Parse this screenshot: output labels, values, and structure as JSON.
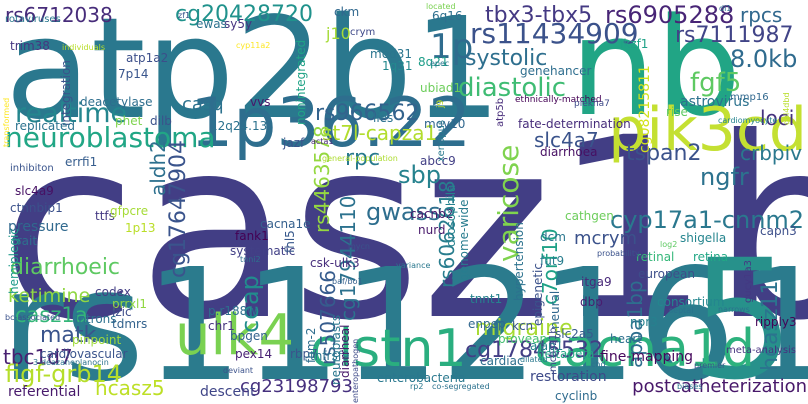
{
  "words": [
    {
      "text": "casz1b",
      "color": "#423e85"
    },
    {
      "text": "rs1112161",
      "color": "#2b7b8d"
    },
    {
      "text": "5",
      "color": "#27918b"
    },
    {
      "text": "atp2b1",
      "color": "#2a788e"
    },
    {
      "text": "nb",
      "color": "#21a585"
    },
    {
      "text": "1p36.22",
      "color": "#2e6e8e"
    },
    {
      "text": "pik3cd",
      "color": "#c4e032"
    },
    {
      "text": "clstn1",
      "color": "#2aae7f"
    },
    {
      "text": "cacna1d",
      "color": "#2db27d"
    },
    {
      "text": "ulk4",
      "color": "#7ad151"
    },
    {
      "text": "neuroblastoma",
      "color": "#21a685"
    },
    {
      "text": "realtime",
      "color": "#24868e"
    },
    {
      "text": "rs11434909",
      "color": "#3b528b"
    },
    {
      "text": "tbx3-tbx5",
      "color": "#443983"
    },
    {
      "text": "rs6905288",
      "color": "#482576"
    },
    {
      "text": "rs6712038",
      "color": "#472c7a"
    },
    {
      "text": "cg20428720",
      "color": "#20928c"
    },
    {
      "text": "1p",
      "color": "#2f6c8e"
    },
    {
      "text": "systolic",
      "color": "#2e6f8e"
    },
    {
      "text": "diastolic",
      "color": "#3fbc73"
    },
    {
      "text": "8.0kb",
      "color": "#2f6b8e"
    },
    {
      "text": "rs7111987",
      "color": "#414487"
    },
    {
      "text": "fgf5",
      "color": "#5ec962"
    },
    {
      "text": "rpcs",
      "color": "#31688e"
    },
    {
      "text": "loci",
      "color": "#46327e"
    },
    {
      "text": "rs966562",
      "color": "#33638d"
    },
    {
      "text": "st7l-capza1",
      "color": "#b2dd2d"
    },
    {
      "text": "tspan2",
      "color": "#3b528b"
    },
    {
      "text": "ngfr",
      "color": "#2c728e"
    },
    {
      "text": "crbpiv",
      "color": "#2a788e"
    },
    {
      "text": "cyp17a1-cnnm2",
      "color": "#2a788e"
    },
    {
      "text": "varicose",
      "color": "#7fd34e"
    },
    {
      "text": "slc4a7",
      "color": "#3a538b"
    },
    {
      "text": "rs4463578",
      "color": "#95d840"
    },
    {
      "text": "sbp",
      "color": "#26828e"
    },
    {
      "text": "gwass",
      "color": "#2e6e8e"
    },
    {
      "text": "rpc",
      "color": "#297a8e"
    },
    {
      "text": "aldh2",
      "color": "#2d708e"
    },
    {
      "text": "casq",
      "color": "#2c728e"
    },
    {
      "text": "cg17647904",
      "color": "#3a548c"
    },
    {
      "text": "diarrhoeic",
      "color": "#5ec962"
    },
    {
      "text": "ketimine",
      "color": "#90d743"
    },
    {
      "text": "casz1a",
      "color": "#34b679"
    },
    {
      "text": "matk",
      "color": "#3a548c"
    },
    {
      "text": "tbc1d7",
      "color": "#482071"
    },
    {
      "text": "figf-grb14",
      "color": "#b5de2b"
    },
    {
      "text": "hcasz5",
      "color": "#bddf26"
    },
    {
      "text": "ceap",
      "color": "#228c8d"
    },
    {
      "text": "migraine",
      "color": "#a8db34"
    },
    {
      "text": "cg17845532",
      "color": "#433e85"
    },
    {
      "text": "mcrym",
      "color": "#3b528b"
    },
    {
      "text": "apoa1bp",
      "color": "#2e6e8e"
    },
    {
      "text": "hcasz11",
      "color": "#2b748e"
    },
    {
      "text": "rs507666",
      "color": "#365c8d"
    },
    {
      "text": "cg17944110",
      "color": "#2c728e"
    },
    {
      "text": "rs6062618",
      "color": "#287d8e"
    },
    {
      "text": "c7orf10",
      "color": "#1fa287"
    },
    {
      "text": "cg23198793",
      "color": "#46307e"
    },
    {
      "text": "postcatheterization",
      "color": "#48186a"
    },
    {
      "text": "restoration",
      "color": "#3e4a89"
    },
    {
      "text": "enterobacteria",
      "color": "#2a788e"
    },
    {
      "text": "referential",
      "color": "#481a6c"
    },
    {
      "text": "descent",
      "color": "#404688"
    },
    {
      "text": "j10",
      "color": "#a5db36"
    },
    {
      "text": "ckm",
      "color": "#31688e"
    },
    {
      "text": "crym",
      "color": "#3e4989"
    },
    {
      "text": "med31",
      "color": "#2b758e"
    },
    {
      "text": "1q31",
      "color": "#23898e"
    },
    {
      "text": "8q21",
      "color": "#1f9e89"
    },
    {
      "text": "6q16",
      "color": "#2e6f8e"
    },
    {
      "text": "genehancer",
      "color": "#2e6e8e"
    },
    {
      "text": "astrovirus",
      "color": "#2c728e"
    },
    {
      "text": "cg08215811",
      "color": "#d2e21b"
    },
    {
      "text": "ikzf1",
      "color": "#1fa287"
    },
    {
      "text": "rise",
      "color": "#5ec962"
    },
    {
      "text": "ubiad1",
      "color": "#6ccd5a"
    },
    {
      "text": "mov10",
      "color": "#31678e"
    },
    {
      "text": "lies",
      "color": "#2c728e"
    },
    {
      "text": "fate-determination",
      "color": "#472d7b"
    },
    {
      "text": "diarrhoea",
      "color": "#471063"
    },
    {
      "text": "retinal",
      "color": "#35b779"
    },
    {
      "text": "retina",
      "color": "#22a785"
    },
    {
      "text": "fut9",
      "color": "#287d8e"
    },
    {
      "text": "dcm",
      "color": "#2a768e"
    },
    {
      "text": "itga9",
      "color": "#482979"
    },
    {
      "text": "dbp",
      "color": "#481d6f"
    },
    {
      "text": "capn3",
      "color": "#3c4f8a"
    },
    {
      "text": "consortium",
      "color": "#24868e"
    },
    {
      "text": "npr3",
      "color": "#26818e"
    },
    {
      "text": "european",
      "color": "#3d4e8a"
    },
    {
      "text": "tnnt1",
      "color": "#26828e"
    },
    {
      "text": "enpep",
      "color": "#31678e"
    },
    {
      "text": "kcn",
      "color": "#39558c"
    },
    {
      "text": "provean",
      "color": "#44bf70"
    },
    {
      "text": "heart",
      "color": "#2e6f8e"
    },
    {
      "text": "fine-mapping",
      "color": "#46085c"
    },
    {
      "text": "deltabeta",
      "color": "#22a884"
    },
    {
      "text": "cyclinb",
      "color": "#2f6b8e"
    },
    {
      "text": "ripply3",
      "color": "#440256"
    },
    {
      "text": "cardiovascular",
      "color": "#3a548c"
    },
    {
      "text": "introns",
      "color": "#2c718e"
    },
    {
      "text": "tdmrs",
      "color": "#33628d"
    },
    {
      "text": "pinpoint",
      "color": "#9fda3a"
    },
    {
      "text": "codex",
      "color": "#433d84"
    },
    {
      "text": "prrxl1",
      "color": "#91d742"
    },
    {
      "text": "lzic",
      "color": "#3d4d8a"
    },
    {
      "text": "chr1",
      "color": "#46337f"
    },
    {
      "text": "bpgen",
      "color": "#33628d"
    },
    {
      "text": "pex14",
      "color": "#482173"
    },
    {
      "text": "rbp7",
      "color": "#3a548c"
    },
    {
      "text": "tnfrsf9",
      "color": "#2c738e"
    },
    {
      "text": "ajap1",
      "color": "#25848e"
    },
    {
      "text": "slc2a5",
      "color": "#375b8d"
    },
    {
      "text": "cardiac",
      "color": "#2e6f8e"
    },
    {
      "text": "csk-ulk3",
      "color": "#472e7c"
    },
    {
      "text": "cathgen",
      "color": "#6ccd5a"
    },
    {
      "text": "fank1",
      "color": "#440154"
    },
    {
      "text": "systematic",
      "color": "#424086"
    },
    {
      "text": "cacna1e",
      "color": "#35608d"
    },
    {
      "text": "cacnb2",
      "color": "#481769"
    },
    {
      "text": "nurd",
      "color": "#481a6c"
    },
    {
      "text": "abcc9",
      "color": "#423f85"
    },
    {
      "text": "shigella",
      "color": "#25858e"
    },
    {
      "text": "errfi1",
      "color": "#365d8d"
    },
    {
      "text": "slc4a9",
      "color": "#471164"
    },
    {
      "text": "ctnnbip1",
      "color": "#3b518b"
    },
    {
      "text": "pressure",
      "color": "#30698e"
    },
    {
      "text": "trait",
      "color": "#2e6f8e"
    },
    {
      "text": "hemiplegic",
      "color": "#1f9a8a"
    },
    {
      "text": "ttfs",
      "color": "#443983"
    },
    {
      "text": "gfpcre",
      "color": "#a5db36"
    },
    {
      "text": "1p13",
      "color": "#bade28"
    },
    {
      "text": "trim38",
      "color": "#453781"
    },
    {
      "text": "deacetylase",
      "color": "#2e6e8e"
    },
    {
      "text": "integration",
      "color": "#3a538b"
    },
    {
      "text": "nonintegrated",
      "color": "#20a386"
    },
    {
      "text": "atp1a2",
      "color": "#3c4f8a"
    },
    {
      "text": "7p14",
      "color": "#39558c"
    },
    {
      "text": "replicated",
      "color": "#2c728e"
    },
    {
      "text": "phet",
      "color": "#7fd34e"
    },
    {
      "text": "dilb",
      "color": "#3b528b"
    },
    {
      "text": "12q24.13",
      "color": "#2c728e"
    },
    {
      "text": "vvs",
      "color": "#48186a"
    },
    {
      "text": "sy5y",
      "color": "#46337f"
    },
    {
      "text": "ewas",
      "color": "#2c728e"
    },
    {
      "text": "rotaviruses",
      "color": "#2a788e"
    },
    {
      "text": "individuals",
      "color": "#b8de29"
    },
    {
      "text": "zf1",
      "color": "#3a548c"
    },
    {
      "text": "cyp11a2",
      "color": "#fde725"
    },
    {
      "text": "located",
      "color": "#7ad151"
    },
    {
      "text": "epec",
      "color": "#2a788e"
    },
    {
      "text": "atp5b",
      "color": "#472c7a"
    },
    {
      "text": "ethnically-matched",
      "color": "#440154"
    },
    {
      "text": "plekha7",
      "color": "#3e4a89"
    },
    {
      "text": "mmp16",
      "color": "#31688e"
    },
    {
      "text": "cardiomyocyte",
      "color": "#25848e"
    },
    {
      "text": "acta1",
      "color": "#482878"
    },
    {
      "text": "xenopus",
      "color": "#297a8e"
    },
    {
      "text": "j9",
      "color": "#c2df23"
    },
    {
      "text": "drosophila",
      "color": "#26828e"
    },
    {
      "text": "genome-wide",
      "color": "#287c8e"
    },
    {
      "text": "general-population",
      "color": "#addc30"
    },
    {
      "text": "jazf",
      "color": "#3a548c"
    },
    {
      "text": "mycn",
      "color": "#3b528b"
    },
    {
      "text": "neuroblasts",
      "color": "#2a788e"
    },
    {
      "text": "fhl5",
      "color": "#38598c"
    },
    {
      "text": "fhm-2",
      "color": "#2e6e8e"
    },
    {
      "text": "diarrheal",
      "color": "#481769"
    },
    {
      "text": "hypertension",
      "color": "#2c728e"
    },
    {
      "text": "epigenetic",
      "color": "#3b528b"
    },
    {
      "text": "neural",
      "color": "#31688e"
    },
    {
      "text": "mcasz1b",
      "color": "#3e4a89"
    },
    {
      "text": "chd",
      "color": "#2d708e"
    },
    {
      "text": "meta-analysis",
      "color": "#46337f"
    },
    {
      "text": "variance",
      "color": "#2a788e"
    },
    {
      "text": "probability",
      "color": "#3b528b"
    },
    {
      "text": "log2",
      "color": "#5ec962"
    },
    {
      "text": "gucy1a3",
      "color": "#443983"
    },
    {
      "text": "septal",
      "color": "#2c728e"
    },
    {
      "text": "narrows",
      "color": "#2c728e"
    },
    {
      "text": "baf/bo1",
      "color": "#35608d"
    },
    {
      "text": "tnni2",
      "color": "#2e6f8e"
    },
    {
      "text": "inhibiton",
      "color": "#3a548c"
    },
    {
      "text": "bc-associated",
      "color": "#3b528b"
    },
    {
      "text": "3-deazaneplanocin",
      "color": "#2c728e"
    },
    {
      "text": "p.r188w",
      "color": "#2e6e8e"
    },
    {
      "text": "deviant",
      "color": "#3b528b"
    },
    {
      "text": "dilated",
      "color": "#2a788e"
    },
    {
      "text": "enteropathogen",
      "color": "#3e4a89"
    },
    {
      "text": "rp2",
      "color": "#2a788e"
    },
    {
      "text": "co-segregated",
      "color": "#2c728e"
    },
    {
      "text": "biases",
      "color": "#2a788e"
    },
    {
      "text": "premier",
      "color": "#3b528b"
    },
    {
      "text": "gal4dbd",
      "color": "#b8de29"
    },
    {
      "text": "transformed",
      "color": "#fde725"
    },
    {
      "text": "dl1",
      "color": "#2e6e8e"
    }
  ]
}
